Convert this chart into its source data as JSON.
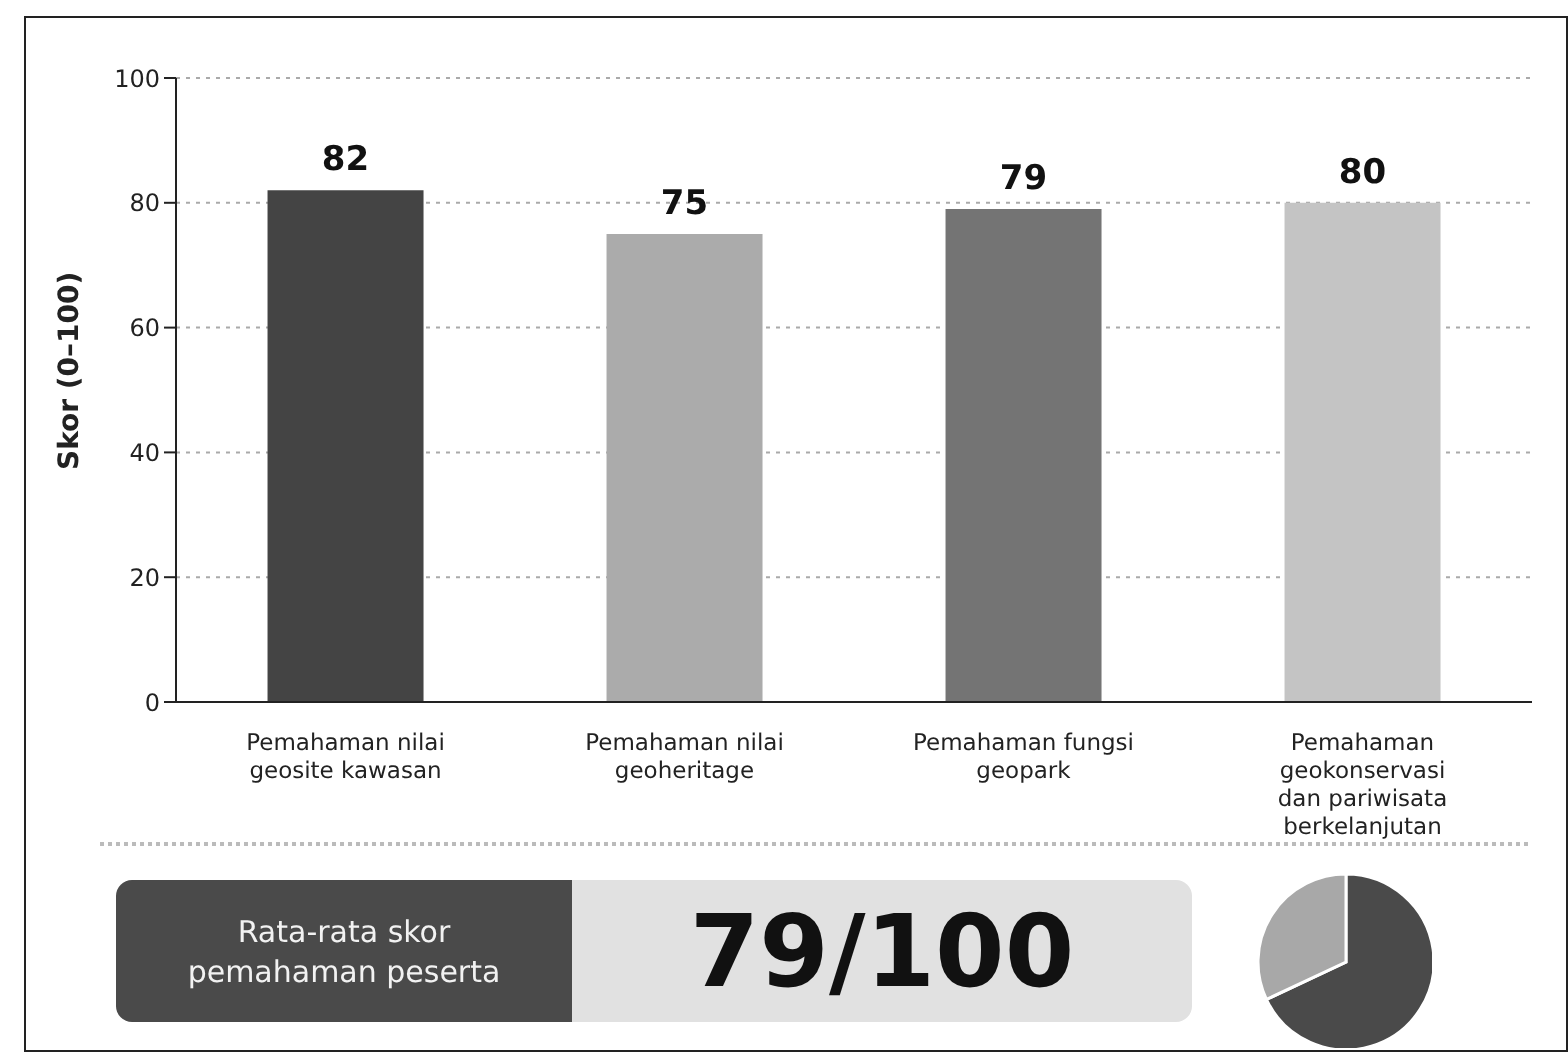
{
  "chart_data": [
    {
      "type": "bar",
      "ylabel": "Skor (0–100)",
      "categories": [
        "Pemahaman nilai geosite kawasan",
        "Pemahaman nilai geoheritage",
        "Pemahaman fungsi geopark",
        "Pemahaman geokonservasi dan pariwisata berkelanjutan"
      ],
      "values": [
        82,
        75,
        79,
        80
      ],
      "colors": [
        "#444444",
        "#ababab",
        "#747474",
        "#c4c4c4"
      ],
      "ylim": [
        0,
        100
      ],
      "yticks": [
        0,
        20,
        40,
        60,
        80,
        100
      ],
      "grid": "y",
      "data_labels": true
    },
    {
      "type": "other",
      "annotations": [
        "Rata-rata skor pemahaman peserta",
        "79/100"
      ]
    },
    {
      "type": "pie",
      "categories": [
        null,
        null
      ],
      "values": [
        68,
        32
      ],
      "colors": [
        "#4a4a4a",
        "#a8a8a8"
      ]
    }
  ]
}
